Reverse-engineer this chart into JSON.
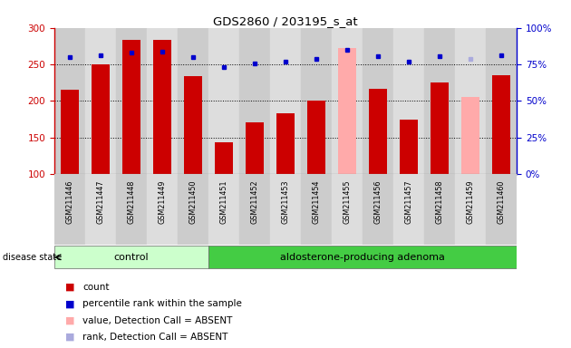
{
  "title": "GDS2860 / 203195_s_at",
  "samples": [
    "GSM211446",
    "GSM211447",
    "GSM211448",
    "GSM211449",
    "GSM211450",
    "GSM211451",
    "GSM211452",
    "GSM211453",
    "GSM211454",
    "GSM211455",
    "GSM211456",
    "GSM211457",
    "GSM211458",
    "GSM211459",
    "GSM211460"
  ],
  "bar_values": [
    215,
    250,
    284,
    284,
    234,
    144,
    171,
    183,
    201,
    272,
    217,
    175,
    225,
    205,
    235
  ],
  "bar_colors": [
    "#cc0000",
    "#cc0000",
    "#cc0000",
    "#cc0000",
    "#cc0000",
    "#cc0000",
    "#cc0000",
    "#cc0000",
    "#cc0000",
    "#ffaaaa",
    "#cc0000",
    "#cc0000",
    "#cc0000",
    "#ffaaaa",
    "#cc0000"
  ],
  "dot_values_left": [
    260,
    263,
    266,
    267,
    260,
    246,
    251,
    254,
    258,
    270,
    261,
    254,
    261,
    258,
    263
  ],
  "dot_colors": [
    "#0000cc",
    "#0000cc",
    "#0000cc",
    "#0000cc",
    "#0000cc",
    "#0000cc",
    "#0000cc",
    "#0000cc",
    "#0000cc",
    "#0000cc",
    "#0000cc",
    "#0000cc",
    "#0000cc",
    "#aaaadd",
    "#0000cc"
  ],
  "ylim_left": [
    100,
    300
  ],
  "ylim_right": [
    0,
    100
  ],
  "yticks_left": [
    100,
    150,
    200,
    250,
    300
  ],
  "yticks_right": [
    0,
    25,
    50,
    75,
    100
  ],
  "ytick_labels_right": [
    "0%",
    "25%",
    "50%",
    "75%",
    "100%"
  ],
  "control_indices": [
    0,
    1,
    2,
    3,
    4
  ],
  "adenoma_indices": [
    5,
    6,
    7,
    8,
    9,
    10,
    11,
    12,
    13,
    14
  ],
  "control_label": "control",
  "adenoma_label": "aldosterone-producing adenoma",
  "disease_state_label": "disease state",
  "control_color_light": "#ccffcc",
  "control_color": "#88dd88",
  "adenoma_color": "#44cc44",
  "col_bg_odd": "#cccccc",
  "col_bg_even": "#dddddd",
  "background_color": "#ffffff",
  "legend_items": [
    {
      "label": "count",
      "color": "#cc0000"
    },
    {
      "label": "percentile rank within the sample",
      "color": "#0000cc"
    },
    {
      "label": "value, Detection Call = ABSENT",
      "color": "#ffaaaa"
    },
    {
      "label": "rank, Detection Call = ABSENT",
      "color": "#aaaadd"
    }
  ],
  "bar_width": 0.6,
  "grid_lines": [
    150,
    200,
    250
  ],
  "left_color": "#cc0000",
  "right_color": "#0000cc"
}
